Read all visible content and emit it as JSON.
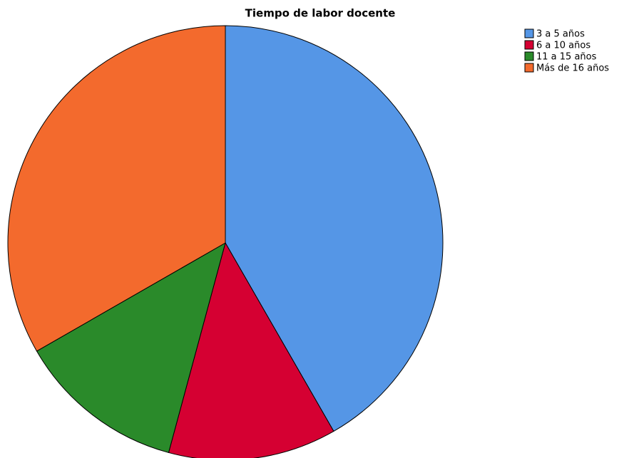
{
  "chart_data": {
    "type": "pie",
    "title": "Tiempo de labor docente",
    "categories": [
      "3 a 5 años",
      "6 a 10 años",
      "11 a 15 años",
      "Más de 16 años"
    ],
    "values": [
      41.7,
      12.5,
      12.5,
      33.3
    ],
    "colors": [
      "#5596e6",
      "#d50032",
      "#2a8a2a",
      "#f36a2d"
    ],
    "legend": "top-right"
  }
}
